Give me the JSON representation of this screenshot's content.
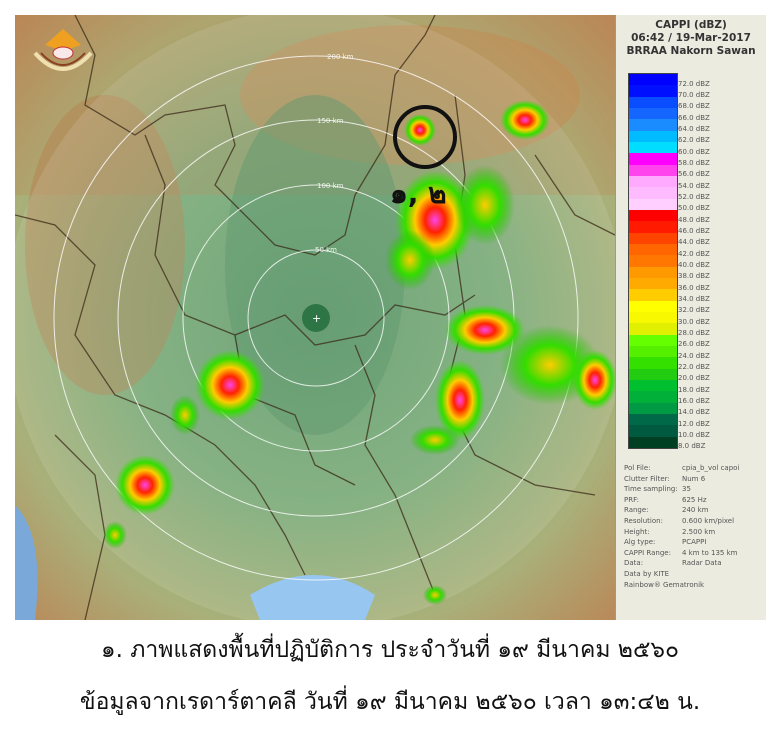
{
  "panel": {
    "title": "CAPPI (dBZ)",
    "datetime": "06:42 / 19-Mar-2017",
    "station": "BRRAA Nakorn Sawan",
    "legend": [
      {
        "label": "72.0 dBZ",
        "color": "#0000ff"
      },
      {
        "label": "70.0 dBZ",
        "color": "#0010ff"
      },
      {
        "label": "68.0 dBZ",
        "color": "#0a4cff"
      },
      {
        "label": "66.0 dBZ",
        "color": "#1466ff"
      },
      {
        "label": "64.0 dBZ",
        "color": "#1a8cff"
      },
      {
        "label": "62.0 dBZ",
        "color": "#00bbff"
      },
      {
        "label": "60.0 dBZ",
        "color": "#00ddff"
      },
      {
        "label": "58.0 dBZ",
        "color": "#ff00ff"
      },
      {
        "label": "56.0 dBZ",
        "color": "#ff44ee"
      },
      {
        "label": "54.0 dBZ",
        "color": "#ffaaff"
      },
      {
        "label": "52.0 dBZ",
        "color": "#ffbbff"
      },
      {
        "label": "50.0 dBZ",
        "color": "#ffd0ff"
      },
      {
        "label": "48.0 dBZ",
        "color": "#ff0000"
      },
      {
        "label": "46.0 dBZ",
        "color": "#ff1a00"
      },
      {
        "label": "44.0 dBZ",
        "color": "#ff4400"
      },
      {
        "label": "42.0 dBZ",
        "color": "#ff6600"
      },
      {
        "label": "40.0 dBZ",
        "color": "#ff7700"
      },
      {
        "label": "38.0 dBZ",
        "color": "#ff9900"
      },
      {
        "label": "36.0 dBZ",
        "color": "#ffaa00"
      },
      {
        "label": "34.0 dBZ",
        "color": "#ffcc00"
      },
      {
        "label": "32.0 dBZ",
        "color": "#ffff00"
      },
      {
        "label": "30.0 dBZ",
        "color": "#f8f800"
      },
      {
        "label": "28.0 dBZ",
        "color": "#e0f000"
      },
      {
        "label": "26.0 dBZ",
        "color": "#66ff00"
      },
      {
        "label": "24.0 dBZ",
        "color": "#55f000"
      },
      {
        "label": "22.0 dBZ",
        "color": "#33e000"
      },
      {
        "label": "20.0 dBZ",
        "color": "#22cc11"
      },
      {
        "label": "18.0 dBZ",
        "color": "#00c030"
      },
      {
        "label": "16.0 dBZ",
        "color": "#00b038"
      },
      {
        "label": "14.0 dBZ",
        "color": "#009944"
      },
      {
        "label": "12.0 dBZ",
        "color": "#006a48"
      },
      {
        "label": "10.0 dBZ",
        "color": "#005a40"
      },
      {
        "label": "8.0 dBZ",
        "color": "#003f22"
      }
    ],
    "info": [
      {
        "k": "Pol File:",
        "v": "cpia_b_vol capoi"
      },
      {
        "k": "Clutter Filter:",
        "v": "Num 6"
      },
      {
        "k": "Time sampling:",
        "v": "35"
      },
      {
        "k": "PRF:",
        "v": "625 Hz"
      },
      {
        "k": "Range:",
        "v": "240 km"
      },
      {
        "k": "Resolution:",
        "v": "0.600 km/pixel"
      },
      {
        "k": "Height:",
        "v": "2.500 km"
      },
      {
        "k": "Alg type:",
        "v": "PCAPPI"
      },
      {
        "k": "CAPPI Range:",
        "v": "4 km to 135 km"
      },
      {
        "k": "Data:",
        "v": "Radar Data"
      },
      {
        "k": "Data by KITE",
        "v": ""
      },
      {
        "k": "Rainbow® Gematronik",
        "v": ""
      }
    ]
  },
  "map": {
    "range_rings": [
      "50 km",
      "100 km",
      "150 km",
      "200 km"
    ],
    "annotation": "๑, ๒"
  },
  "caption": {
    "line1": "๑. ภาพแสดงพื้นที่ปฏิบัติการ ประจำวันที่ ๑๙ มีนาคม ๒๕๖๐",
    "line2": "ข้อมูลจากเรดาร์ตาคลี วันที่ ๑๙ มีนาคม ๒๕๖๐ เวลา ๑๓:๔๒ น."
  }
}
